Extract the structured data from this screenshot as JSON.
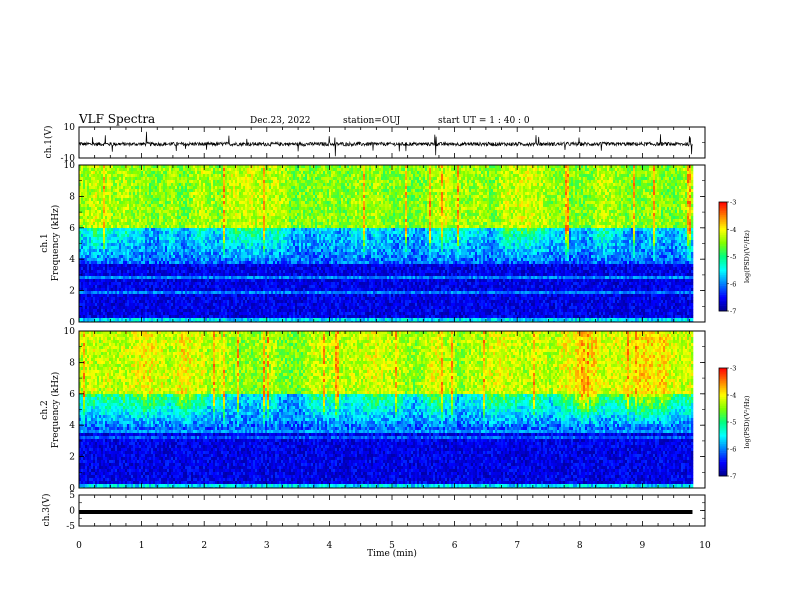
{
  "header": {
    "title": "VLF Spectra",
    "date": "Dec.23, 2022",
    "station": "station=OUJ",
    "start": "start  UT =   1 : 40 : 0"
  },
  "colors": {
    "spectrogram_scale": [
      "#00008b",
      "#0000ff",
      "#0080ff",
      "#00ffff",
      "#00ff80",
      "#80ff00",
      "#ffff00",
      "#ff8000",
      "#ff0000",
      "#ffffff"
    ]
  },
  "chart_data": [
    {
      "type": "line",
      "name": "ch1-waveform",
      "ylabel": "ch.1(V)",
      "ylim": [
        -10,
        10
      ],
      "yticks": [
        "10",
        "-10"
      ],
      "x_range": [
        0,
        9.8
      ],
      "baseline": -1,
      "description_values": {
        "noise_amplitude": 1.2,
        "spike_max": 8
      }
    },
    {
      "type": "heatmap",
      "name": "ch1-spectrogram",
      "ylabel_top": "ch.1",
      "ylabel": "Frequency (kHz)",
      "ylim": [
        0,
        10
      ],
      "yticks": [
        "0",
        "2",
        "4",
        "6",
        "8",
        "10"
      ],
      "x_range": [
        0,
        9.8
      ],
      "colorbar": {
        "label": "log(PSD)(V²/Hz)",
        "range": [
          -7,
          -3
        ],
        "ticks": [
          "-7",
          "-6",
          "-5",
          "-4",
          "-3"
        ]
      }
    },
    {
      "type": "heatmap",
      "name": "ch2-spectrogram",
      "ylabel_top": "ch.2",
      "ylabel": "Frequency (kHz)",
      "ylim": [
        0,
        10
      ],
      "yticks": [
        "0",
        "2",
        "4",
        "6",
        "8",
        "10"
      ],
      "x_range": [
        0,
        9.8
      ],
      "colorbar": {
        "label": "log(PSD)(V²/Hz)",
        "range": [
          -7,
          -3
        ],
        "ticks": [
          "-7",
          "-6",
          "-5",
          "-4",
          "-3"
        ]
      }
    },
    {
      "type": "line",
      "name": "ch3-waveform",
      "ylabel": "ch.3(V)",
      "ylim": [
        -5,
        5
      ],
      "yticks": [
        "5",
        "0",
        "-5"
      ],
      "x_range": [
        0,
        9.8
      ],
      "baseline": -0.5
    }
  ],
  "xaxis": {
    "label": "Time (min)",
    "xlim": [
      0,
      10
    ],
    "ticks": [
      "0",
      "1",
      "2",
      "3",
      "4",
      "5",
      "6",
      "7",
      "8",
      "9",
      "10"
    ]
  }
}
